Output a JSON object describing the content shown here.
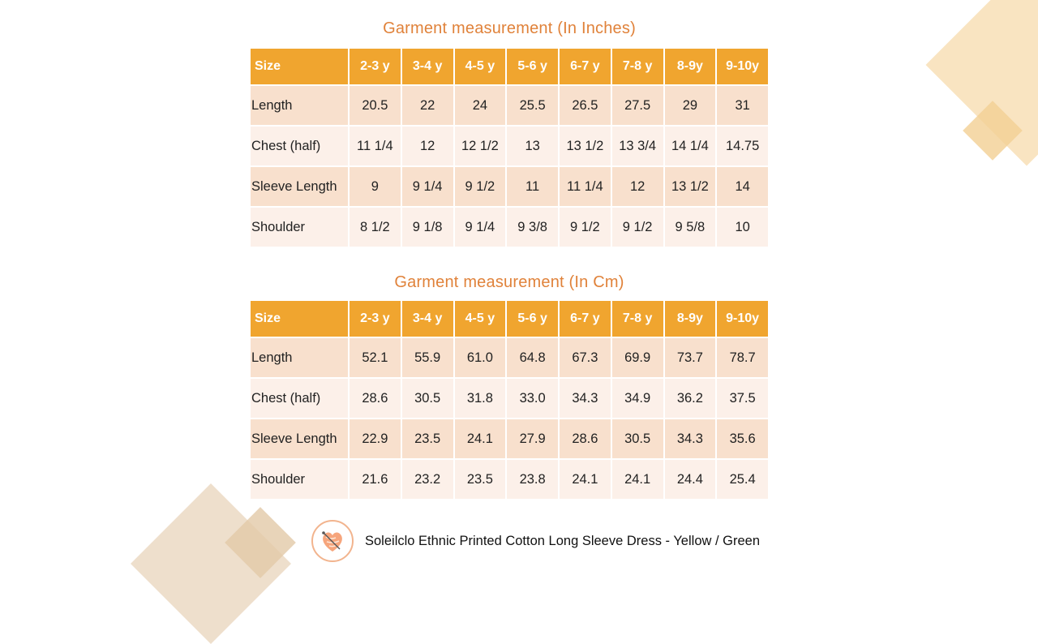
{
  "inches": {
    "title": "Garment measurement (In Inches)",
    "headers": [
      "Size",
      "2-3 y",
      "3-4 y",
      "4-5 y",
      "5-6 y",
      "6-7 y",
      "7-8 y",
      "8-9y",
      "9-10y"
    ],
    "rows": [
      [
        "Length",
        "20.5",
        "22",
        "24",
        "25.5",
        "26.5",
        "27.5",
        "29",
        "31"
      ],
      [
        "Chest (half)",
        "11 1/4",
        "12",
        "12 1/2",
        "13",
        "13 1/2",
        "13 3/4",
        "14 1/4",
        "14.75"
      ],
      [
        "Sleeve Length",
        "9",
        "9 1/4",
        "9 1/2",
        "11",
        "11 1/4",
        "12",
        "13 1/2",
        "14"
      ],
      [
        "Shoulder",
        "8 1/2",
        "9 1/8",
        "9 1/4",
        "9 3/8",
        "9 1/2",
        "9 1/2",
        "9 5/8",
        "10"
      ]
    ]
  },
  "cm": {
    "title": "Garment measurement (In Cm)",
    "headers": [
      "Size",
      "2-3 y",
      "3-4 y",
      "4-5 y",
      "5-6 y",
      "6-7 y",
      "7-8 y",
      "8-9y",
      "9-10y"
    ],
    "rows": [
      [
        "Length",
        "52.1",
        "55.9",
        "61.0",
        "64.8",
        "67.3",
        "69.9",
        "73.7",
        "78.7"
      ],
      [
        "Chest (half)",
        "28.6",
        "30.5",
        "31.8",
        "33.0",
        "34.3",
        "34.9",
        "36.2",
        "37.5"
      ],
      [
        "Sleeve Length",
        "22.9",
        "23.5",
        "24.1",
        "27.9",
        "28.6",
        "30.5",
        "34.3",
        "35.6"
      ],
      [
        "Shoulder",
        "21.6",
        "23.2",
        "23.5",
        "23.8",
        "24.1",
        "24.1",
        "24.4",
        "25.4"
      ]
    ]
  },
  "footer": {
    "logo_icon": "heart-logo-icon",
    "product_name": "Soleilclo Ethnic Printed Cotton Long Sleeve Dress - Yellow / Green"
  },
  "colors": {
    "header_bg": "#f0a52f",
    "title": "#e0823a",
    "row_dark": "#f8e0cd",
    "row_light": "#fcf0e9"
  }
}
